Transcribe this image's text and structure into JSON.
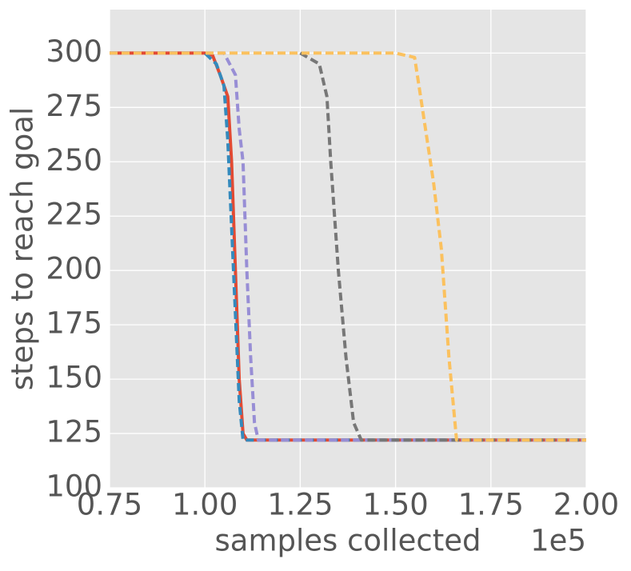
{
  "chart_data": {
    "type": "line",
    "xlabel": "samples collected",
    "ylabel": "steps to reach goal",
    "x_offset_label": "1e5",
    "xlim": [
      0.75,
      2.0
    ],
    "xticks": [
      0.75,
      {
        "value": 1,
        "label": "1.00"
      },
      1.25,
      {
        "value": 1.5,
        "label": "1.50"
      },
      1.75,
      {
        "value": 2,
        "label": "2.00"
      }
    ],
    "ylim": [
      100,
      320
    ],
    "yticks": [
      100,
      125,
      150,
      175,
      200,
      225,
      250,
      275,
      300
    ],
    "grid": true,
    "series": [
      {
        "color": "#E24A33",
        "linestyle": "solid",
        "x": [
          0.75,
          1.0,
          1.02,
          1.04,
          1.05,
          1.06,
          1.07,
          1.08,
          1.09,
          1.1,
          1.11,
          2.0
        ],
        "values": [
          300,
          300,
          299,
          290,
          285,
          280,
          250,
          200,
          150,
          125,
          122,
          122
        ]
      },
      {
        "color": "#348ABD",
        "linestyle": "dashed",
        "x": [
          0.75,
          1.0,
          1.03,
          1.05,
          1.06,
          1.07,
          1.08,
          1.09,
          1.1,
          2.0
        ],
        "values": [
          300,
          300,
          295,
          285,
          260,
          220,
          180,
          140,
          122,
          122
        ]
      },
      {
        "color": "#988ED5",
        "linestyle": "dashed",
        "x": [
          0.75,
          1.05,
          1.08,
          1.09,
          1.1,
          1.11,
          1.12,
          1.13,
          1.14,
          2.0
        ],
        "values": [
          300,
          300,
          290,
          265,
          250,
          200,
          160,
          130,
          122,
          122
        ]
      },
      {
        "color": "#777777",
        "linestyle": "dashed",
        "x": [
          1.25,
          1.3,
          1.32,
          1.33,
          1.35,
          1.37,
          1.39,
          1.41,
          2.0
        ],
        "values": [
          300,
          295,
          280,
          250,
          200,
          160,
          130,
          122,
          122
        ]
      },
      {
        "color": "#FBC15E",
        "linestyle": "dashed",
        "x": [
          0.75,
          1.5,
          1.55,
          1.57,
          1.6,
          1.62,
          1.64,
          1.66,
          2.0
        ],
        "values": [
          300,
          300,
          298,
          275,
          240,
          210,
          160,
          122,
          122
        ]
      }
    ]
  }
}
